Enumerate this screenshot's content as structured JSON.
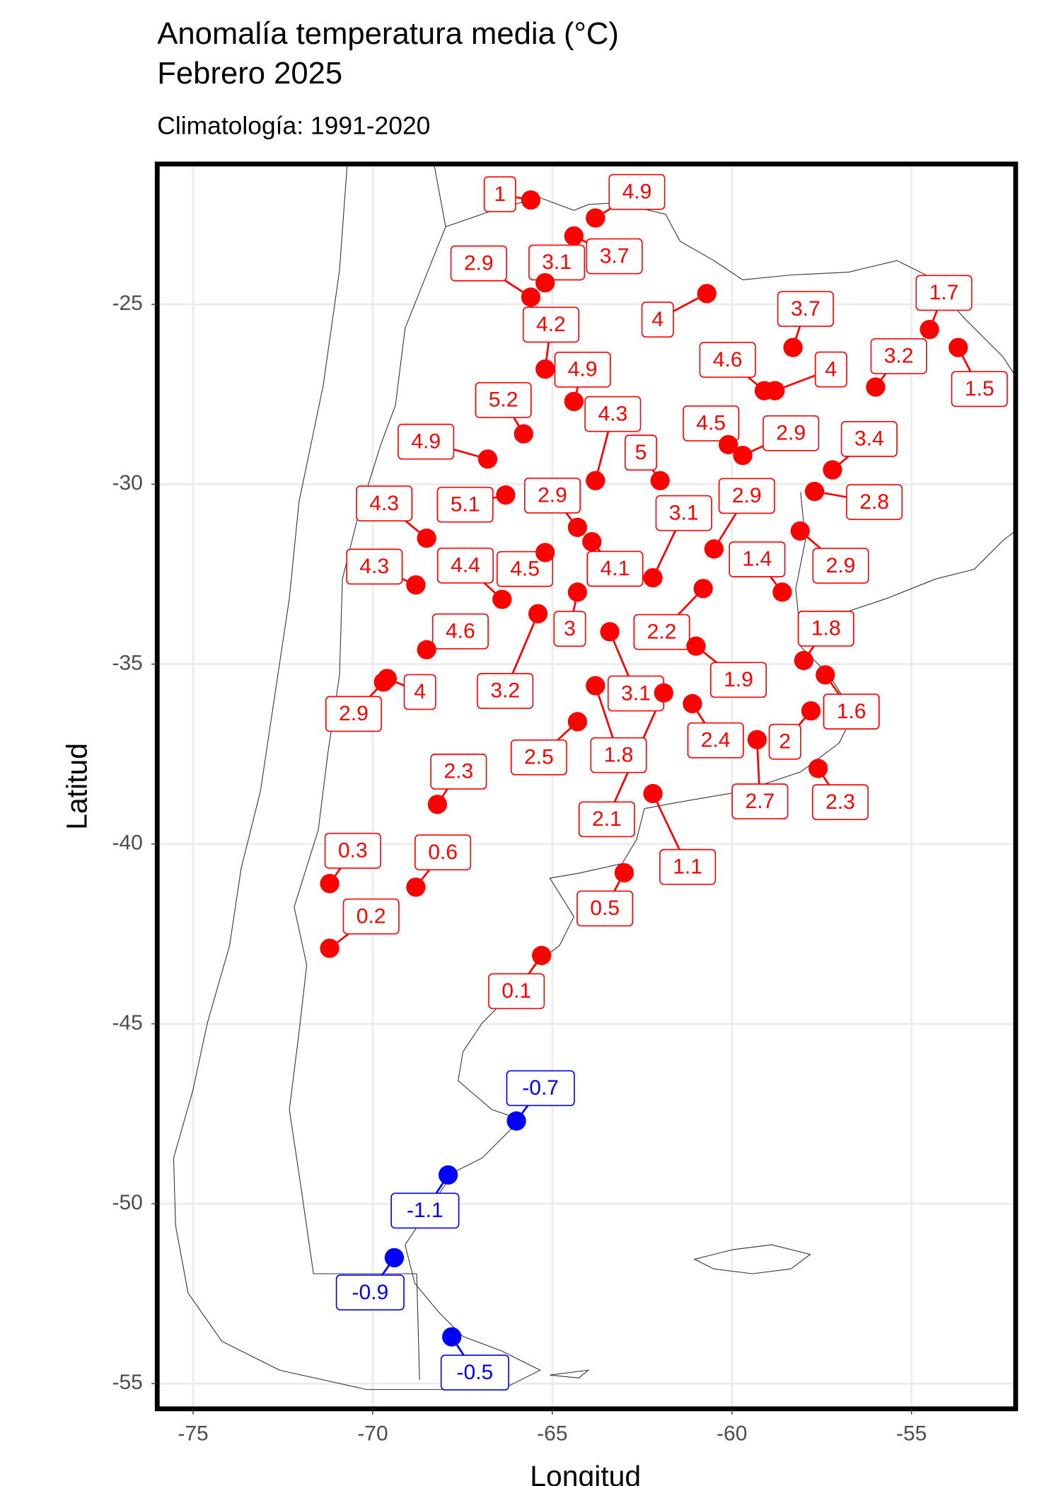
{
  "chart_data": {
    "type": "scatter",
    "title": [
      "Anomalía temperatura media (°C)",
      "Febrero 2025"
    ],
    "subtitle": "Climatología: 1991-2020",
    "x_label": "Longitud",
    "y_label": "Latitud",
    "xlim": [
      -76,
      -52.1
    ],
    "ylim": [
      -55.7,
      -21.1
    ],
    "xticks": [
      -75,
      -70,
      -65,
      -60,
      -55
    ],
    "yticks": [
      -25,
      -30,
      -35,
      -40,
      -45,
      -50,
      -55
    ],
    "grid": true,
    "colors": {
      "positive": "#ff0000",
      "negative": "#0000ff"
    },
    "x": [
      -65.6,
      -63.8,
      -64.4,
      -65.2,
      -65.6,
      -60.7,
      -58.3,
      -54.5,
      -53.7,
      -65.2,
      -59.1,
      -58.8,
      -56.0,
      -64.4,
      -65.8,
      -63.8,
      -60.1,
      -59.7,
      -66.8,
      -62.0,
      -57.2,
      -57.7,
      -66.3,
      -64.3,
      -60.5,
      -62.2,
      -68.5,
      -58.6,
      -58.1,
      -68.8,
      -66.4,
      -65.2,
      -63.9,
      -68.5,
      -64.3,
      -60.8,
      -65.4,
      -58.0,
      -61.0,
      -69.6,
      -69.7,
      -63.4,
      -57.4,
      -63.8,
      -64.3,
      -61.1,
      -57.8,
      -68.2,
      -59.3,
      -57.6,
      -61.9,
      -62.2,
      -71.2,
      -68.8,
      -71.2,
      -63.0,
      -65.3,
      -66.0,
      -67.9,
      -69.4,
      -67.8
    ],
    "y": [
      -22.1,
      -22.6,
      -23.1,
      -24.4,
      -24.8,
      -24.7,
      -26.2,
      -25.7,
      -26.2,
      -26.8,
      -27.4,
      -27.4,
      -27.3,
      -27.7,
      -28.6,
      -29.9,
      -28.9,
      -29.2,
      -29.3,
      -29.9,
      -29.6,
      -30.2,
      -30.3,
      -31.2,
      -31.8,
      -32.6,
      -31.5,
      -33.0,
      -31.3,
      -32.8,
      -33.2,
      -31.9,
      -31.6,
      -34.6,
      -33.0,
      -32.9,
      -33.6,
      -34.9,
      -34.5,
      -35.4,
      -35.5,
      -34.1,
      -35.3,
      -35.6,
      -36.6,
      -36.1,
      -36.3,
      -38.9,
      -37.1,
      -37.9,
      -35.8,
      -38.6,
      -41.1,
      -41.2,
      -42.9,
      -40.8,
      -43.1,
      -47.7,
      -49.2,
      -51.5,
      -53.7
    ],
    "values": [
      1,
      4.9,
      3.7,
      3.1,
      2.9,
      4,
      3.7,
      1.7,
      1.5,
      4.2,
      4.6,
      4,
      3.2,
      4.9,
      5.2,
      4.3,
      4.5,
      2.9,
      4.9,
      5,
      3.4,
      2.8,
      5.1,
      2.9,
      2.9,
      3.1,
      4.3,
      1.4,
      2.9,
      4.3,
      4.4,
      4.5,
      4.1,
      4.6,
      3,
      2.2,
      3.2,
      1.8,
      1.9,
      4,
      2.9,
      3.1,
      1.6,
      1.8,
      2.5,
      2.4,
      2,
      2.3,
      2.7,
      2.3,
      2.1,
      1.1,
      0.3,
      0.6,
      0.2,
      0.5,
      0.1,
      -0.7,
      -1.1,
      -0.9,
      -0.5
    ]
  }
}
